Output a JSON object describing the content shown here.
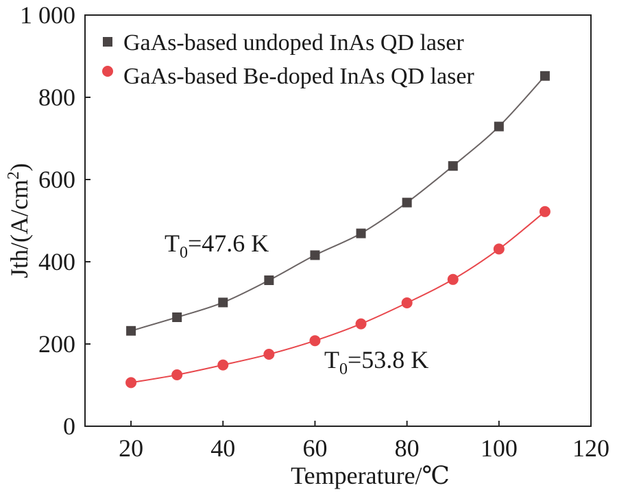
{
  "chart_data": {
    "type": "scatter",
    "title": "",
    "xlabel": "Temperature/℃",
    "ylabel": "Jth/(A/cm",
    "ylabel_sup": "2",
    "ylabel_close": ")",
    "xlim": [
      10,
      120
    ],
    "ylim": [
      0,
      1000
    ],
    "x_ticks": [
      20,
      40,
      60,
      80,
      100,
      120
    ],
    "x_tick_labels": [
      "20",
      "40",
      "60",
      "80",
      "100",
      "120"
    ],
    "y_ticks": [
      0,
      200,
      400,
      600,
      800,
      1000
    ],
    "y_tick_labels": [
      "0",
      "200",
      "400",
      "600",
      "800",
      "1 000"
    ],
    "grid": false,
    "legend_position": "top-left",
    "x": [
      20,
      30,
      40,
      50,
      60,
      70,
      80,
      90,
      100,
      110
    ],
    "series": [
      {
        "name": "GaAs-based undoped InAs QD laser",
        "marker": "square",
        "marker_color": "#4a4444",
        "line_color": "#6b6464",
        "values": [
          232,
          265,
          301,
          355,
          416,
          469,
          544,
          633,
          729,
          852
        ]
      },
      {
        "name": "GaAs-based Be-doped InAs QD laser",
        "marker": "circle",
        "marker_color": "#e8474c",
        "line_color": "#e8474c",
        "values": [
          106,
          125,
          149,
          175,
          208,
          249,
          300,
          357,
          431,
          522
        ]
      }
    ],
    "annotations": [
      {
        "main": "T",
        "sub": "0",
        "rest": "=47.6 K",
        "series": 0,
        "x_data": 20,
        "y_data": 430
      },
      {
        "main": "T",
        "sub": "0",
        "rest": "=53.8 K",
        "series": 1,
        "x_data": 60,
        "y_data": 155
      }
    ]
  }
}
